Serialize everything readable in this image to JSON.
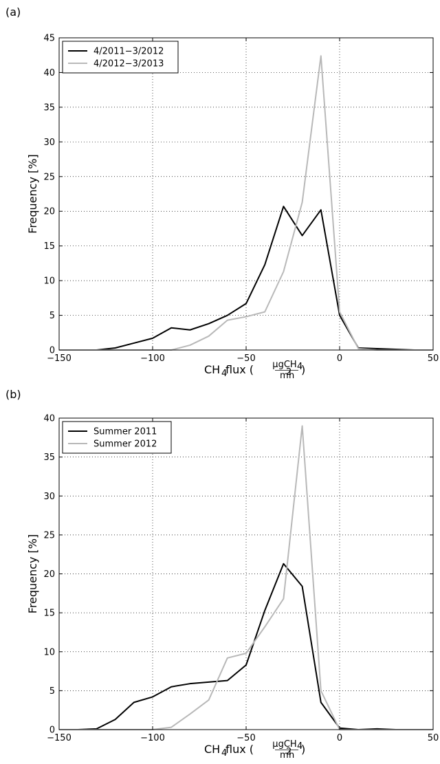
{
  "chart_data": [
    {
      "panel_label": "(a)",
      "type": "line",
      "xlabel_main": "CH",
      "xlabel_sub": "4",
      "xlabel_flux": " flux (",
      "xlabel_close": ")",
      "xlabel_num": "μgCH",
      "xlabel_num_sub": "4",
      "xlabel_den": "m",
      "xlabel_den_sup": "2",
      "xlabel_den_tail": "h",
      "ylabel": "Frequency [%]",
      "xlim": [
        -150,
        50
      ],
      "ylim": [
        0,
        45
      ],
      "xticks": [
        -150,
        -100,
        -50,
        0,
        50
      ],
      "xtick_labels": [
        "−150",
        "−100",
        "−50",
        "0",
        "50"
      ],
      "yticks": [
        0,
        5,
        10,
        15,
        20,
        25,
        30,
        35,
        40,
        45
      ],
      "yticks_labels": [
        "0",
        "5",
        "10",
        "15",
        "20",
        "25",
        "30",
        "35",
        "40",
        "45"
      ],
      "grid": true,
      "legend_position": "top-left",
      "series": [
        {
          "name": "4/2011−3/2012",
          "color": "#000000",
          "x": [
            -150,
            -140,
            -130,
            -120,
            -110,
            -100,
            -90,
            -80,
            -70,
            -60,
            -50,
            -40,
            -30,
            -20,
            -10,
            0,
            10,
            20,
            30,
            40,
            50
          ],
          "y": [
            0,
            0,
            0,
            0.3,
            1.0,
            1.7,
            3.2,
            2.9,
            3.8,
            5.0,
            6.7,
            12.3,
            20.7,
            16.5,
            20.2,
            5.0,
            0.3,
            0.2,
            0.1,
            0,
            0
          ]
        },
        {
          "name": "4/2012−3/2013",
          "color": "#b8b8b8",
          "x": [
            -150,
            -140,
            -130,
            -120,
            -110,
            -100,
            -90,
            -80,
            -70,
            -60,
            -50,
            -40,
            -30,
            -20,
            -10,
            0,
            10,
            20,
            30,
            40,
            50
          ],
          "y": [
            0,
            0,
            0,
            0,
            0,
            0,
            0,
            0.7,
            2.0,
            4.3,
            4.8,
            5.5,
            11.3,
            21.3,
            42.4,
            5.5,
            0.2,
            0,
            0,
            0,
            0
          ]
        }
      ]
    },
    {
      "panel_label": "(b)",
      "type": "line",
      "xlabel_main": "CH",
      "xlabel_sub": "4",
      "xlabel_flux": " flux (",
      "xlabel_close": ")",
      "xlabel_num": "μgCH",
      "xlabel_num_sub": "4",
      "xlabel_den": "m",
      "xlabel_den_sup": "2",
      "xlabel_den_tail": "h",
      "ylabel": "Frequency [%]",
      "xlim": [
        -150,
        50
      ],
      "ylim": [
        0,
        40
      ],
      "xticks": [
        -150,
        -100,
        -50,
        0,
        50
      ],
      "xtick_labels": [
        "−150",
        "−100",
        "−50",
        "0",
        "50"
      ],
      "yticks": [
        0,
        5,
        10,
        15,
        20,
        25,
        30,
        35,
        40
      ],
      "yticks_labels": [
        "0",
        "5",
        "10",
        "15",
        "20",
        "25",
        "30",
        "35",
        "40"
      ],
      "grid": true,
      "legend_position": "top-left",
      "series": [
        {
          "name": "Summer 2011",
          "color": "#000000",
          "x": [
            -150,
            -140,
            -130,
            -120,
            -110,
            -100,
            -90,
            -80,
            -70,
            -60,
            -50,
            -40,
            -30,
            -20,
            -10,
            0,
            10,
            20,
            30,
            40,
            50
          ],
          "y": [
            0,
            0,
            0.1,
            1.3,
            3.5,
            4.2,
            5.5,
            5.9,
            6.1,
            6.3,
            8.3,
            15.3,
            21.3,
            18.4,
            3.5,
            0.2,
            0,
            0.1,
            0,
            0,
            0
          ]
        },
        {
          "name": "Summer 2012",
          "color": "#b8b8b8",
          "x": [
            -150,
            -140,
            -130,
            -120,
            -110,
            -100,
            -90,
            -80,
            -70,
            -60,
            -50,
            -40,
            -30,
            -20,
            -10,
            0,
            10,
            20,
            30,
            40,
            50
          ],
          "y": [
            0,
            0,
            0,
            0,
            0,
            0,
            0.3,
            2.0,
            3.8,
            9.2,
            9.8,
            13.2,
            16.8,
            39.0,
            5.0,
            0,
            0,
            0,
            0,
            0,
            0
          ]
        }
      ]
    }
  ]
}
